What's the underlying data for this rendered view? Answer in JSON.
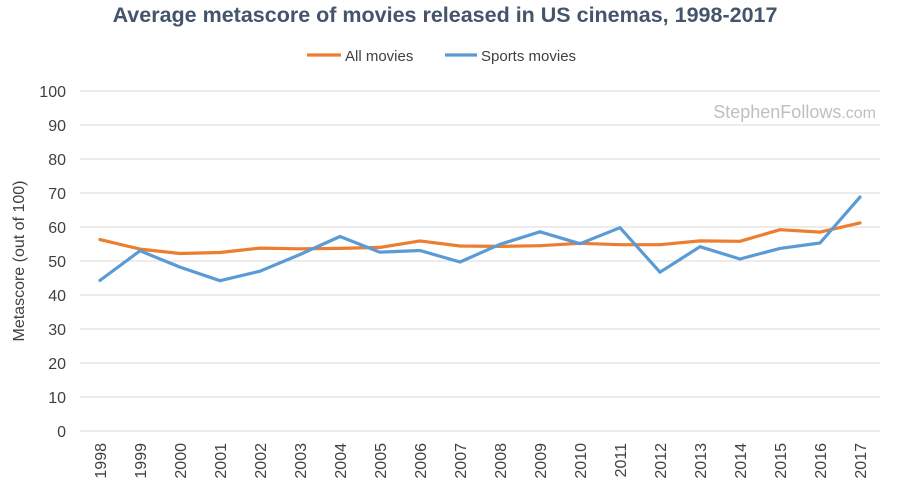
{
  "chart_data": {
    "type": "line",
    "title": "Average metascore of movies released in US cinemas, 1998-2017",
    "xlabel": "",
    "ylabel": "Metascore (out of 100)",
    "ylim": [
      0,
      100
    ],
    "yticks": [
      0,
      10,
      20,
      30,
      40,
      50,
      60,
      70,
      80,
      90,
      100
    ],
    "grid": true,
    "legend_position": "top-center",
    "categories": [
      "1998",
      "1999",
      "2000",
      "2001",
      "2002",
      "2003",
      "2004",
      "2005",
      "2006",
      "2007",
      "2008",
      "2009",
      "2010",
      "2011",
      "2012",
      "2013",
      "2014",
      "2015",
      "2016",
      "2017"
    ],
    "series": [
      {
        "name": "All movies",
        "color": "#ed7d31",
        "values": [
          56.3,
          53.5,
          52.2,
          52.5,
          53.8,
          53.6,
          53.7,
          54.0,
          55.9,
          54.4,
          54.3,
          54.5,
          55.2,
          54.8,
          54.8,
          55.9,
          55.8,
          59.2,
          58.5,
          61.2
        ]
      },
      {
        "name": "Sports movies",
        "color": "#5b9bd5",
        "values": [
          44.3,
          53.0,
          48.2,
          44.2,
          47.0,
          51.9,
          57.2,
          52.6,
          53.1,
          49.7,
          54.9,
          58.6,
          55.1,
          59.8,
          46.7,
          54.2,
          50.6,
          53.7,
          55.3,
          68.8
        ]
      }
    ],
    "watermark_main": "StephenFollows",
    "watermark_suffix": ".com"
  }
}
